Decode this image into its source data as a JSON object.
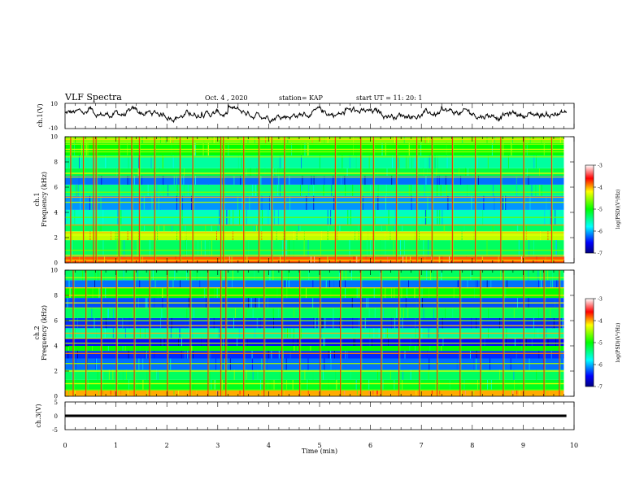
{
  "header": {
    "title": "VLF Spectra",
    "date": "Oct. 4 , 2020",
    "station": "station= KAP",
    "start": "start UT = 11: 20: 1"
  },
  "chart_data": [
    {
      "panel": "ch1-waveform",
      "type": "line",
      "ylabel": "ch.1(V)",
      "ylim": [
        -10,
        10
      ],
      "y_ticks": [
        "10",
        "-10"
      ],
      "xlim": [
        0,
        10
      ],
      "description_values": "noisy waveform roughly between -6 and 9 V, ending near 9.8 min"
    },
    {
      "panel": "ch1-spectrogram",
      "type": "heatmap",
      "ylabel_channel": "ch.1",
      "ylabel": "Frequency (kHz)",
      "ylim": [
        0,
        10
      ],
      "y_ticks": [
        "0",
        "2",
        "4",
        "6",
        "8",
        "10"
      ],
      "xlim": [
        0,
        10
      ],
      "colorbar": {
        "label": "log(PSD)(V²/Hz)",
        "range": [
          -7,
          -3
        ],
        "ticks": [
          "-3",
          "-4",
          "-5",
          "-6",
          "-7"
        ]
      },
      "bands": [
        [
          0.0,
          0.5,
          -3.8
        ],
        [
          0.5,
          1.8,
          -5.3
        ],
        [
          1.8,
          2.5,
          -4.4
        ],
        [
          2.5,
          3.0,
          -5.3
        ],
        [
          3.0,
          4.2,
          -5.6
        ],
        [
          4.2,
          5.3,
          -6.1
        ],
        [
          5.3,
          6.2,
          -5.4
        ],
        [
          6.2,
          6.9,
          -6.2
        ],
        [
          6.9,
          7.5,
          -5.2
        ],
        [
          7.5,
          8.5,
          -5.5
        ],
        [
          8.5,
          9.5,
          -5.0
        ],
        [
          9.5,
          10.0,
          -4.6
        ]
      ],
      "lines_khz": [
        0.2,
        0.6,
        1.0,
        2.0,
        2.2,
        2.4,
        3.0,
        3.6,
        4.8,
        5.2,
        5.6,
        6.8,
        7.1,
        8.4,
        8.8,
        9.0,
        9.4,
        9.8
      ],
      "sferics_min": [
        0.1,
        0.35,
        0.55,
        0.6,
        1.05,
        1.3,
        1.45,
        1.75,
        2.25,
        2.5,
        3.05,
        3.1,
        3.5,
        3.8,
        4.05,
        4.3,
        5.3,
        5.8,
        6.05,
        6.5,
        6.9,
        7.2,
        7.6,
        8.05,
        8.55,
        9.0,
        9.55
      ]
    },
    {
      "panel": "ch2-spectrogram",
      "type": "heatmap",
      "ylabel_channel": "ch.2",
      "ylabel": "Frequency (kHz)",
      "ylim": [
        0,
        10
      ],
      "y_ticks": [
        "0",
        "2",
        "4",
        "6",
        "8",
        "10"
      ],
      "xlim": [
        0,
        10
      ],
      "colorbar": {
        "label": "log(PSD)(V²/Hz)",
        "range": [
          -7,
          -3
        ],
        "ticks": [
          "-3",
          "-4",
          "-5",
          "-6",
          "-7"
        ]
      },
      "bands": [
        [
          0.0,
          0.5,
          -4.0
        ],
        [
          0.5,
          1.3,
          -5.1
        ],
        [
          1.3,
          2.1,
          -5.3
        ],
        [
          2.1,
          3.0,
          -6.2
        ],
        [
          3.0,
          3.6,
          -6.4
        ],
        [
          3.6,
          4.0,
          -5.0
        ],
        [
          4.0,
          4.6,
          -6.5
        ],
        [
          4.6,
          5.4,
          -5.5
        ],
        [
          5.4,
          6.2,
          -6.4
        ],
        [
          6.2,
          7.0,
          -5.3
        ],
        [
          7.0,
          7.8,
          -6.3
        ],
        [
          7.8,
          8.6,
          -5.0
        ],
        [
          8.6,
          9.2,
          -6.2
        ],
        [
          9.2,
          10.0,
          -5.3
        ]
      ],
      "lines_khz": [
        0.1,
        0.5,
        1.0,
        2.0,
        2.6,
        3.4,
        4.2,
        4.6,
        5.0,
        5.6,
        6.0,
        7.0,
        7.4,
        8.0,
        8.6,
        9.4
      ],
      "sferics_min": [
        0.15,
        0.4,
        0.7,
        1.0,
        1.35,
        1.65,
        2.0,
        2.45,
        2.8,
        3.05,
        3.15,
        3.5,
        3.9,
        4.25,
        4.6,
        5.0,
        5.4,
        5.8,
        6.2,
        6.55,
        6.95,
        7.3,
        7.75,
        8.15,
        8.6,
        9.0,
        9.4,
        9.7
      ]
    },
    {
      "panel": "ch3-waveform",
      "type": "line",
      "ylabel": "ch.3(V)",
      "ylim": [
        -5,
        5
      ],
      "y_ticks": [
        "5",
        "0",
        "-5"
      ],
      "xlim": [
        0,
        10
      ],
      "x_ticks": [
        "0",
        "1",
        "2",
        "3",
        "4",
        "5",
        "6",
        "7",
        "8",
        "9",
        "10"
      ],
      "xlabel": "Time (min)",
      "level_v": 0,
      "band_halfwidth_v": 0.45
    }
  ]
}
